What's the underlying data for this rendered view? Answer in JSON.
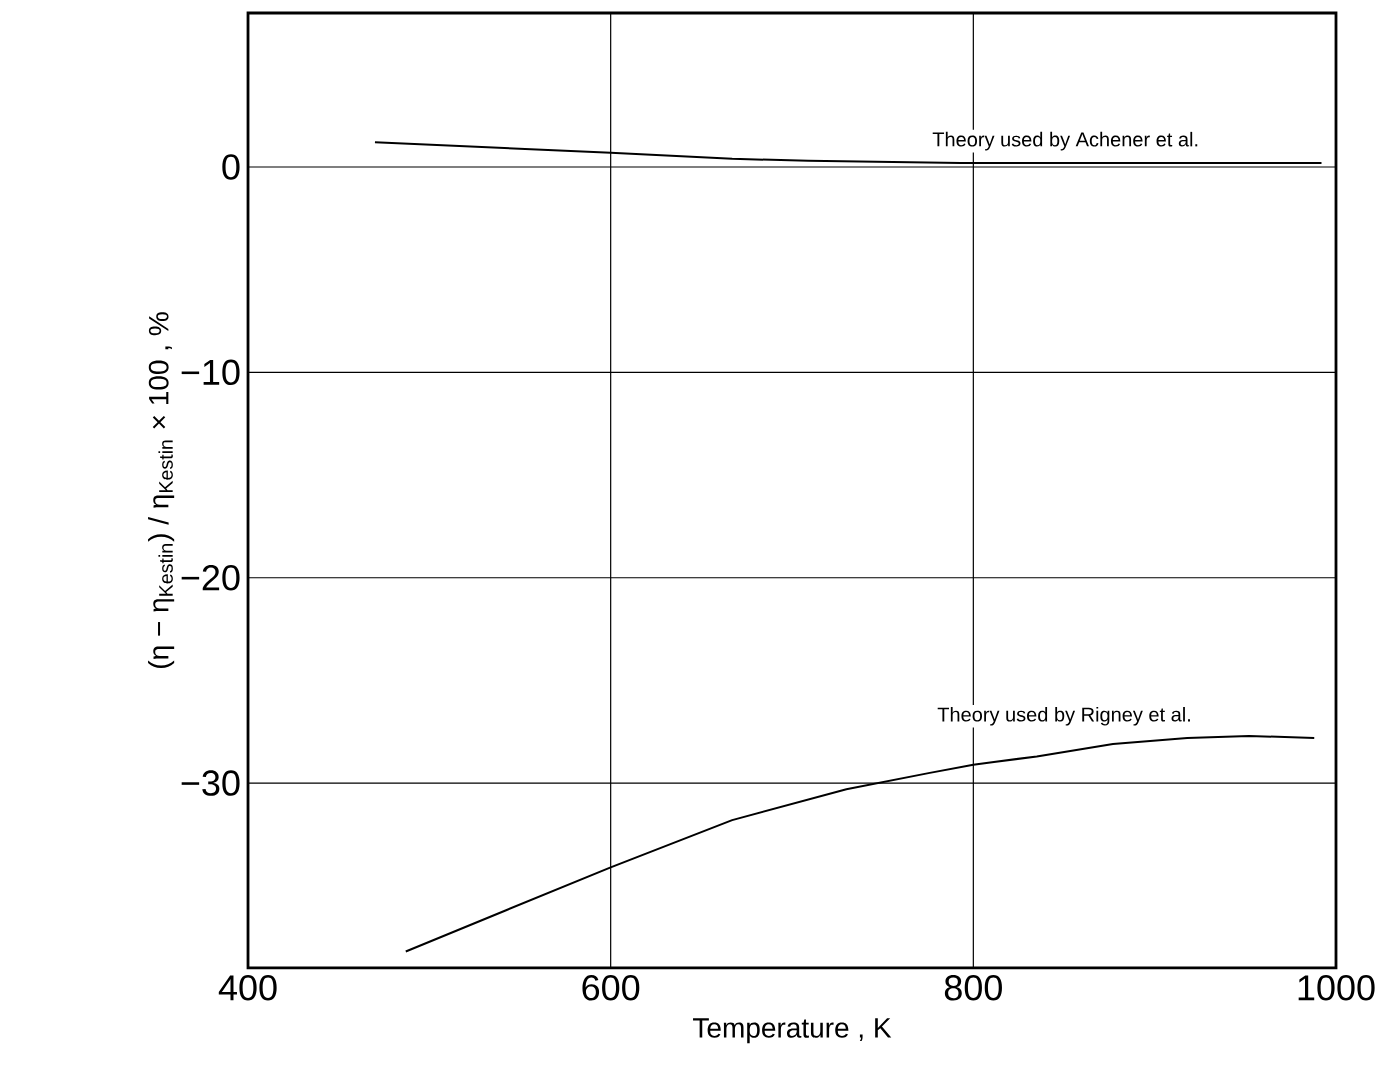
{
  "chart_data": {
    "type": "line",
    "xlabel": "Temperature   , K",
    "ylabel": "(η − η$_{Kestin}$) / η$_{Kestin}$ × 100 , %",
    "xlim": [
      400,
      1000
    ],
    "ylim": [
      -39,
      7.5
    ],
    "xticks": [
      400,
      600,
      800,
      1000
    ],
    "yticks": [
      0,
      {
        "value": -10,
        "label": "−10"
      },
      {
        "value": -20,
        "label": "−20"
      },
      {
        "value": -30,
        "label": "−30"
      }
    ],
    "grid": true,
    "legend": false,
    "line_style": "solid",
    "marker": "none",
    "series": [
      {
        "name": "Theory used by Achener et al.",
        "color": "#000000",
        "x": [
          470,
          600,
          667,
          709,
          793,
          992
        ],
        "values": [
          1.2,
          0.7,
          0.4,
          0.3,
          0.2,
          0.2
        ]
      },
      {
        "name": "Theory used by Rigney et al.",
        "color": "#000000",
        "x": [
          487,
          542,
          600,
          667,
          730,
          776,
          800,
          835,
          877,
          918,
          952,
          988
        ],
        "values": [
          -38.2,
          -36.2,
          -34.1,
          -31.8,
          -30.3,
          -29.5,
          -29.1,
          -28.7,
          -28.1,
          -27.8,
          -27.7,
          -27.8
        ]
      }
    ]
  }
}
